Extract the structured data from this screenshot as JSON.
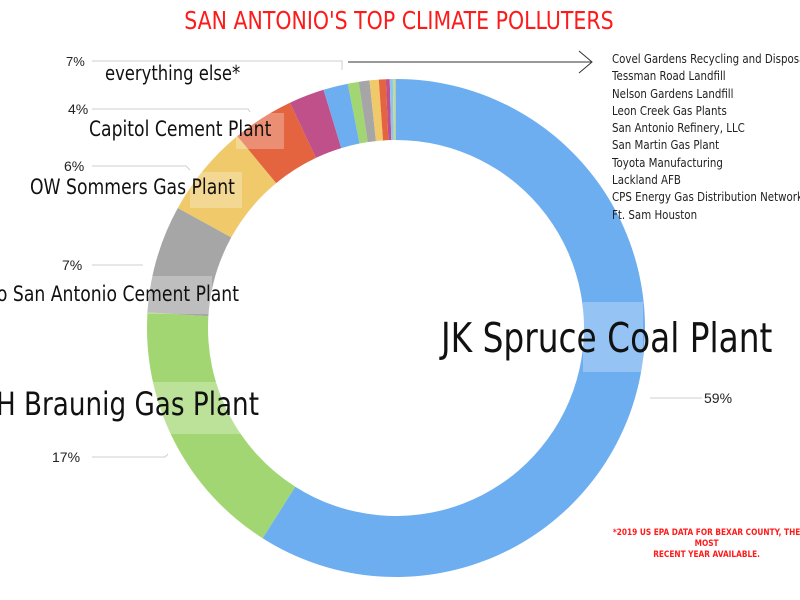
{
  "title": "SAN ANTONIO'S TOP CLIMATE POLLUTERS",
  "chart_data": {
    "type": "pie",
    "subtype": "donut",
    "title": "SAN ANTONIO'S TOP CLIMATE POLLUTERS",
    "start_angle": "top, clockwise",
    "slices": [
      {
        "name": "JK Spruce Coal Plant",
        "value": 59,
        "label": "59%",
        "color": "#6daef0"
      },
      {
        "name": "VH Braunig Gas Plant",
        "value": 17,
        "label": "17%",
        "color": "#a2d672"
      },
      {
        "name": "Alamo San Antonio Cement Plant",
        "value": 7,
        "label": "7%",
        "color": "#a6a6a6"
      },
      {
        "name": "OW Sommers Gas Plant",
        "value": 6,
        "label": "6%",
        "color": "#efc96a"
      },
      {
        "name": "Capitol Cement Plant",
        "value": 4,
        "label": "4%",
        "color": "#e3643f"
      },
      {
        "name": "everything else*",
        "value": 7,
        "label": "7%",
        "color": "multiple",
        "components": [
          {
            "name": "Covel Gardens Recycling and Disposal",
            "value": 2.3,
            "color": "#c0508a"
          },
          {
            "name": "Tessman Road Landfill",
            "value": 1.6,
            "color": "#6daef0"
          },
          {
            "name": "Nelson Gardens Landfill",
            "value": 0.7,
            "color": "#a2d672"
          },
          {
            "name": "Leon Creek Gas Plants",
            "value": 0.7,
            "color": "#a6a6a6"
          },
          {
            "name": "San Antonio Refinery, LLC",
            "value": 0.6,
            "color": "#efc96a"
          },
          {
            "name": "San Martin Gas Plant",
            "value": 0.45,
            "color": "#e3643f"
          },
          {
            "name": "Toyota Manufacturing",
            "value": 0.25,
            "color": "#c0508a"
          },
          {
            "name": "Lackland AFB",
            "value": 0.2,
            "color": "#8ec3f5"
          },
          {
            "name": "CPS Energy Gas Distribution Network",
            "value": 0.15,
            "color": "#b8e08e"
          },
          {
            "name": "Ft. Sam Houston",
            "value": 0.05,
            "color": "#b8b8b8"
          }
        ]
      }
    ],
    "legend_position": "right (for everything else)"
  },
  "labels": {
    "jk_spruce": "JK Spruce Coal Plant",
    "jk_spruce_pct": "59%",
    "vh_braunig": "VH Braunig Gas Plant",
    "vh_braunig_pct": "17%",
    "alamo": "Alamo San Antonio Cement Plant",
    "alamo_pct": "7%",
    "ow_sommers": "OW Sommers Gas Plant",
    "ow_sommers_pct": "6%",
    "capitol": "Capitol Cement Plant",
    "capitol_pct": "4%",
    "everything_else": "everything else*",
    "everything_else_pct": "7%"
  },
  "legend": {
    "items": [
      "Covel Gardens Recycling and Disposal",
      "Tessman Road Landfill",
      "Nelson Gardens Landfill",
      "Leon Creek Gas Plants",
      "San Antonio Refinery, LLC",
      "San Martin Gas Plant",
      "Toyota Manufacturing",
      "Lackland AFB",
      "CPS Energy Gas Distribution Network",
      "Ft. Sam Houston"
    ]
  },
  "footnote": {
    "line1": "*2019 US EPA DATA FOR BEXAR COUNTY, THE MOST",
    "line2": "RECENT YEAR AVAILABLE."
  }
}
